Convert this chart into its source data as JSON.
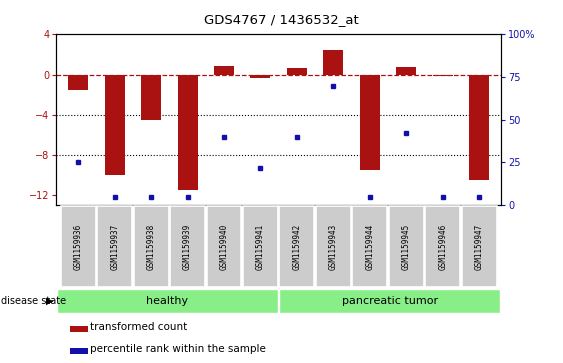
{
  "title": "GDS4767 / 1436532_at",
  "samples": [
    "GSM1159936",
    "GSM1159937",
    "GSM1159938",
    "GSM1159939",
    "GSM1159940",
    "GSM1159941",
    "GSM1159942",
    "GSM1159943",
    "GSM1159944",
    "GSM1159945",
    "GSM1159946",
    "GSM1159947"
  ],
  "transformed_count": [
    -1.5,
    -10.0,
    -4.5,
    -11.5,
    0.9,
    -0.3,
    0.7,
    2.5,
    -9.5,
    0.8,
    -0.1,
    -10.5
  ],
  "percentile_rank": [
    25,
    5,
    5,
    5,
    40,
    22,
    40,
    70,
    5,
    42,
    5,
    5
  ],
  "bar_color": "#aa1111",
  "dot_color": "#1111aa",
  "ylim_left": [
    -13,
    4
  ],
  "ylim_right": [
    0,
    100
  ],
  "yticks_left": [
    4,
    0,
    -4,
    -8,
    -12
  ],
  "yticks_right": [
    100,
    75,
    50,
    25,
    0
  ],
  "dotted_lines": [
    -4,
    -8
  ],
  "healthy_samples": 6,
  "disease_state_label": "disease state",
  "group_labels": [
    "healthy",
    "pancreatic tumor"
  ],
  "legend_entries": [
    "transformed count",
    "percentile rank within the sample"
  ],
  "background_color": "#ffffff",
  "label_box_color": "#cccccc",
  "group_color": "#88ee88"
}
